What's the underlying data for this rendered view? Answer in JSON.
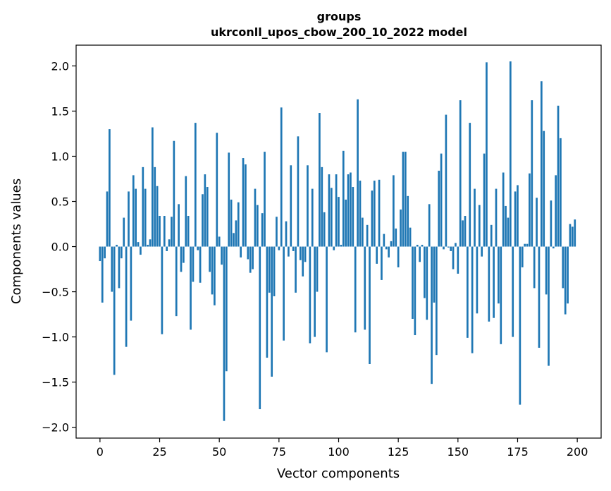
{
  "chart_data": {
    "type": "bar",
    "title": "groups",
    "subtitle": "ukrconll_upos_cbow_200_10_2022 model",
    "xlabel": "Vector components",
    "ylabel": "Components values",
    "xlim": [
      -10,
      210
    ],
    "ylim": [
      -2.12,
      2.23
    ],
    "xticks": [
      0,
      25,
      50,
      75,
      100,
      125,
      150,
      175,
      200
    ],
    "yticks": [
      -2.0,
      -1.5,
      -1.0,
      -0.5,
      0.0,
      0.5,
      1.0,
      1.5,
      2.0
    ],
    "ytick_labels": [
      "−2.0",
      "−1.5",
      "−1.0",
      "−0.5",
      "0.0",
      "0.5",
      "1.0",
      "1.5",
      "2.0"
    ],
    "grid": false,
    "bar_color": "#1f77b4",
    "series": [
      {
        "values": [
          -0.16,
          -0.62,
          -0.13,
          0.61,
          1.3,
          -0.5,
          -1.42,
          0.02,
          -0.46,
          -0.13,
          0.32,
          -1.11,
          0.61,
          -0.82,
          0.79,
          0.64,
          0.05,
          -0.09,
          0.88,
          0.64,
          0.02,
          0.08,
          1.32,
          0.88,
          0.67,
          0.34,
          -0.97,
          0.34,
          -0.05,
          0.08,
          0.33,
          1.17,
          -0.77,
          0.47,
          -0.28,
          -0.18,
          0.78,
          0.34,
          -0.92,
          -0.39,
          1.37,
          -0.04,
          -0.4,
          0.58,
          0.8,
          0.66,
          -0.28,
          -0.53,
          -0.65,
          1.26,
          0.11,
          -0.2,
          -1.93,
          -1.38,
          1.04,
          0.52,
          0.15,
          0.29,
          0.49,
          -0.12,
          0.98,
          0.91,
          -0.14,
          -0.29,
          -0.25,
          0.64,
          0.46,
          -1.8,
          0.37,
          1.05,
          -1.23,
          -0.51,
          -1.44,
          -0.55,
          0.33,
          -0.04,
          1.54,
          -1.04,
          0.28,
          -0.11,
          0.9,
          -0.05,
          -0.51,
          1.22,
          -0.15,
          -0.33,
          -0.17,
          0.9,
          -1.07,
          0.64,
          -1.0,
          -0.5,
          1.48,
          0.88,
          0.38,
          -1.17,
          0.8,
          0.65,
          -0.04,
          0.8,
          0.55,
          0.02,
          1.06,
          0.52,
          0.8,
          0.82,
          0.66,
          -0.95,
          1.63,
          0.73,
          0.32,
          -0.92,
          0.24,
          -1.3,
          0.62,
          0.73,
          -0.19,
          0.74,
          -0.37,
          0.14,
          -0.03,
          -0.12,
          0.06,
          0.79,
          0.2,
          -0.23,
          0.41,
          1.05,
          1.05,
          0.56,
          0.21,
          -0.8,
          -0.98,
          0.02,
          -0.17,
          0.02,
          -0.57,
          -0.81,
          0.47,
          -1.52,
          -0.62,
          -1.2,
          0.84,
          1.03,
          -0.03,
          1.46,
          -0.01,
          -0.05,
          -0.25,
          0.04,
          -0.3,
          1.62,
          0.29,
          0.34,
          -1.01,
          1.37,
          -1.18,
          0.64,
          -0.74,
          0.46,
          -0.11,
          1.03,
          2.04,
          -0.83,
          0.24,
          -0.79,
          0.64,
          -0.63,
          -1.08,
          0.82,
          0.45,
          0.32,
          2.05,
          -1.0,
          0.61,
          0.68,
          -1.75,
          -0.23,
          0.03,
          0.03,
          0.81,
          1.62,
          -0.46,
          0.54,
          -1.12,
          1.83,
          1.28,
          -0.53,
          -1.32,
          0.51,
          -0.02,
          0.79,
          1.56,
          1.2,
          -0.46,
          -0.75,
          -0.63,
          0.25,
          0.22,
          0.3
        ]
      }
    ]
  }
}
